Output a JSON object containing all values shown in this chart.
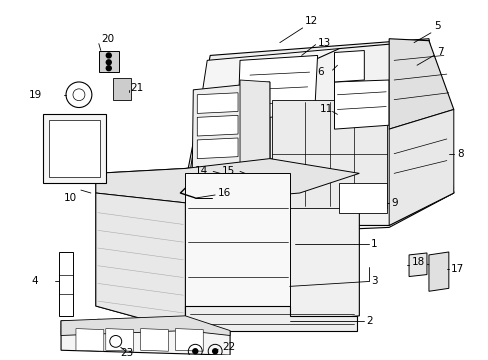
{
  "bg_color": "#ffffff",
  "line_color": "#000000",
  "label_color": "#000000",
  "fig_width": 4.89,
  "fig_height": 3.6,
  "dpi": 100
}
